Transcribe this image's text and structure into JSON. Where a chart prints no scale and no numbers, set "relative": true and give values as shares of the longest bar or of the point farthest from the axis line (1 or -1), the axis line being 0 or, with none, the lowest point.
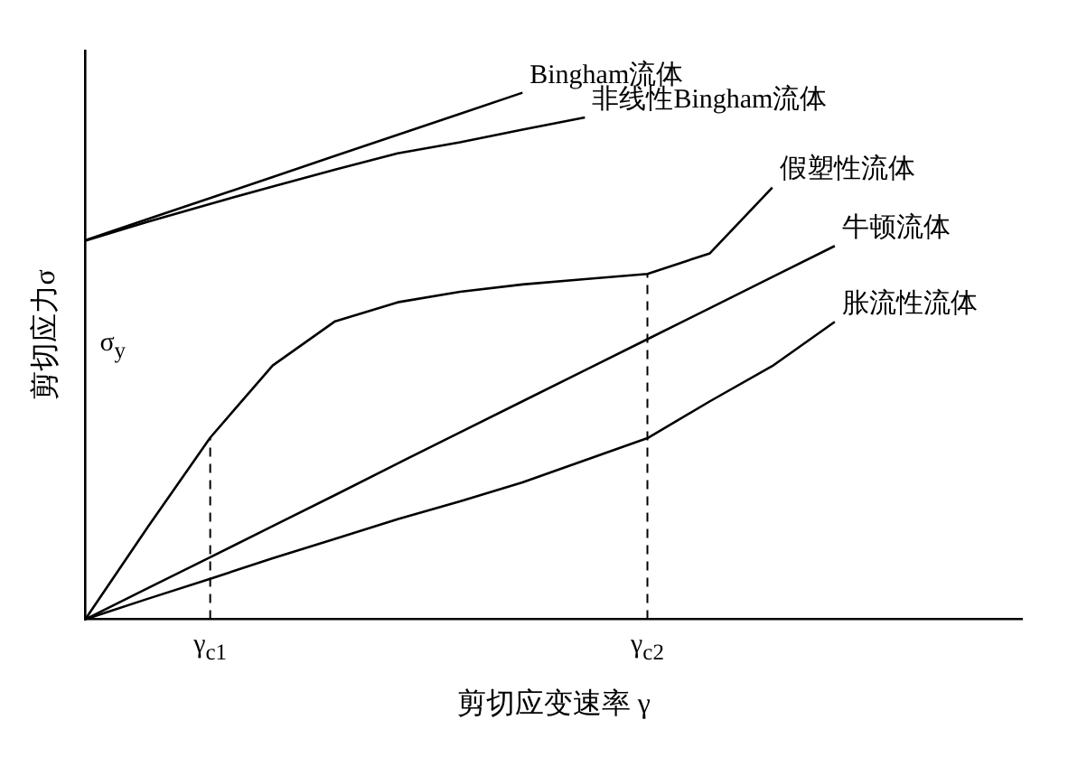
{
  "chart_data": {
    "type": "line",
    "relative": true,
    "xlabel": "剪切应变速率 γ",
    "ylabel": "剪切应力σ",
    "categories": [
      null,
      null,
      "γ$_{c1}$",
      null,
      null,
      null,
      null,
      null,
      null,
      "γ$_{c2}$",
      null,
      null,
      null,
      null,
      null,
      null
    ],
    "grid": false,
    "legend": false,
    "marker": "none",
    "line_style": "solid",
    "annotations": [
      "σ$_{y}$"
    ],
    "ref_lines": [
      {
        "axis": "x",
        "value": "γ$_{c1}$",
        "line_style": "dashed",
        "color": "#000000"
      },
      {
        "axis": "x",
        "value": "γ$_{c2}$",
        "line_style": "dashed",
        "color": "#000000"
      }
    ],
    "series": [
      {
        "name": "Bingham流体",
        "color": "#000000",
        "values": [
          0.72,
          0.76,
          0.8,
          0.84,
          0.88,
          0.92,
          0.96,
          1.0,
          null,
          null,
          null,
          null,
          null,
          null,
          null,
          null
        ]
      },
      {
        "name": "非线性Bingham流体",
        "color": "#000000",
        "values": [
          0.719,
          0.755,
          0.789,
          0.822,
          0.854,
          0.885,
          0.906,
          0.93,
          0.953,
          null,
          null,
          null,
          null,
          null,
          null,
          null
        ]
      },
      {
        "name": "假塑性流体",
        "color": "#000000",
        "values": [
          0,
          0.175,
          0.345,
          0.482,
          0.566,
          0.602,
          0.622,
          0.636,
          0.646,
          0.656,
          0.695,
          0.82,
          null,
          null,
          null,
          null
        ]
      },
      {
        "name": "牛顿流体",
        "color": "#000000",
        "values": [
          0,
          0.059,
          0.118,
          0.177,
          0.236,
          0.296,
          0.355,
          0.414,
          0.473,
          0.532,
          0.591,
          0.65,
          0.709,
          null,
          null,
          null
        ]
      },
      {
        "name": "胀流性流体",
        "color": "#000000",
        "values": [
          0,
          0.039,
          0.077,
          0.116,
          0.153,
          0.19,
          0.224,
          0.26,
          0.302,
          0.344,
          0.414,
          0.481,
          0.565,
          null,
          null,
          null
        ]
      }
    ]
  }
}
